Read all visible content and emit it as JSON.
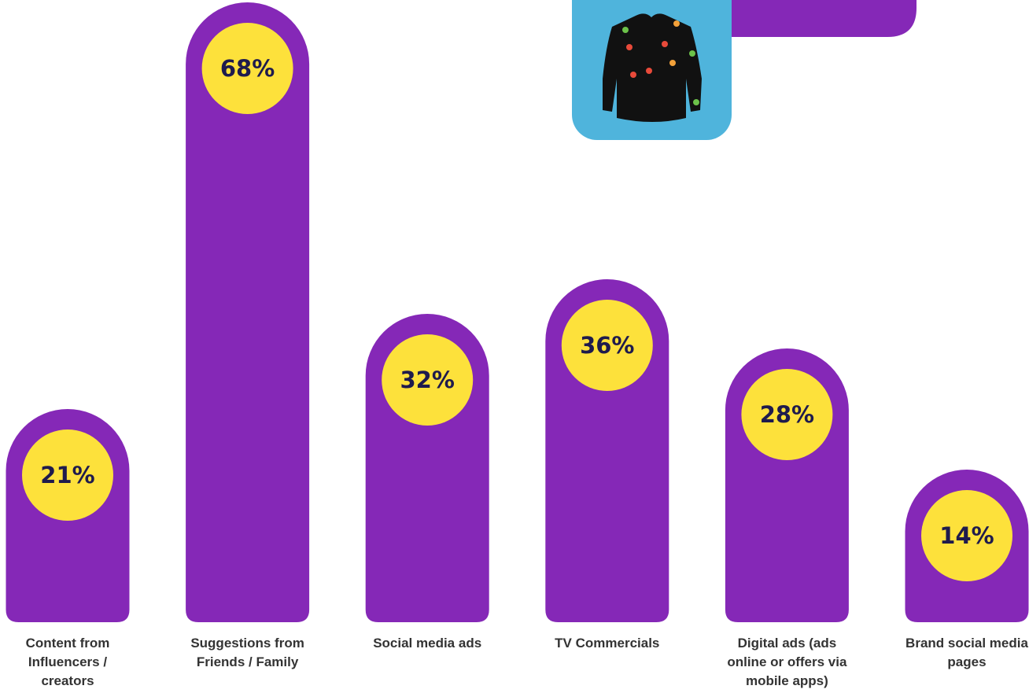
{
  "chart_data": {
    "type": "bar",
    "categories": [
      "Content from Influencers / creators",
      "Suggestions from Friends / Family",
      "Social media ads",
      "TV Commercials",
      "Digital ads (ads online or offers via mobile apps)",
      "Brand social media pages"
    ],
    "values": [
      21,
      68,
      32,
      36,
      28,
      14
    ],
    "value_labels": [
      "21%",
      "68%",
      "32%",
      "36%",
      "28%",
      "14%"
    ],
    "color": "#8528b7"
  }
}
